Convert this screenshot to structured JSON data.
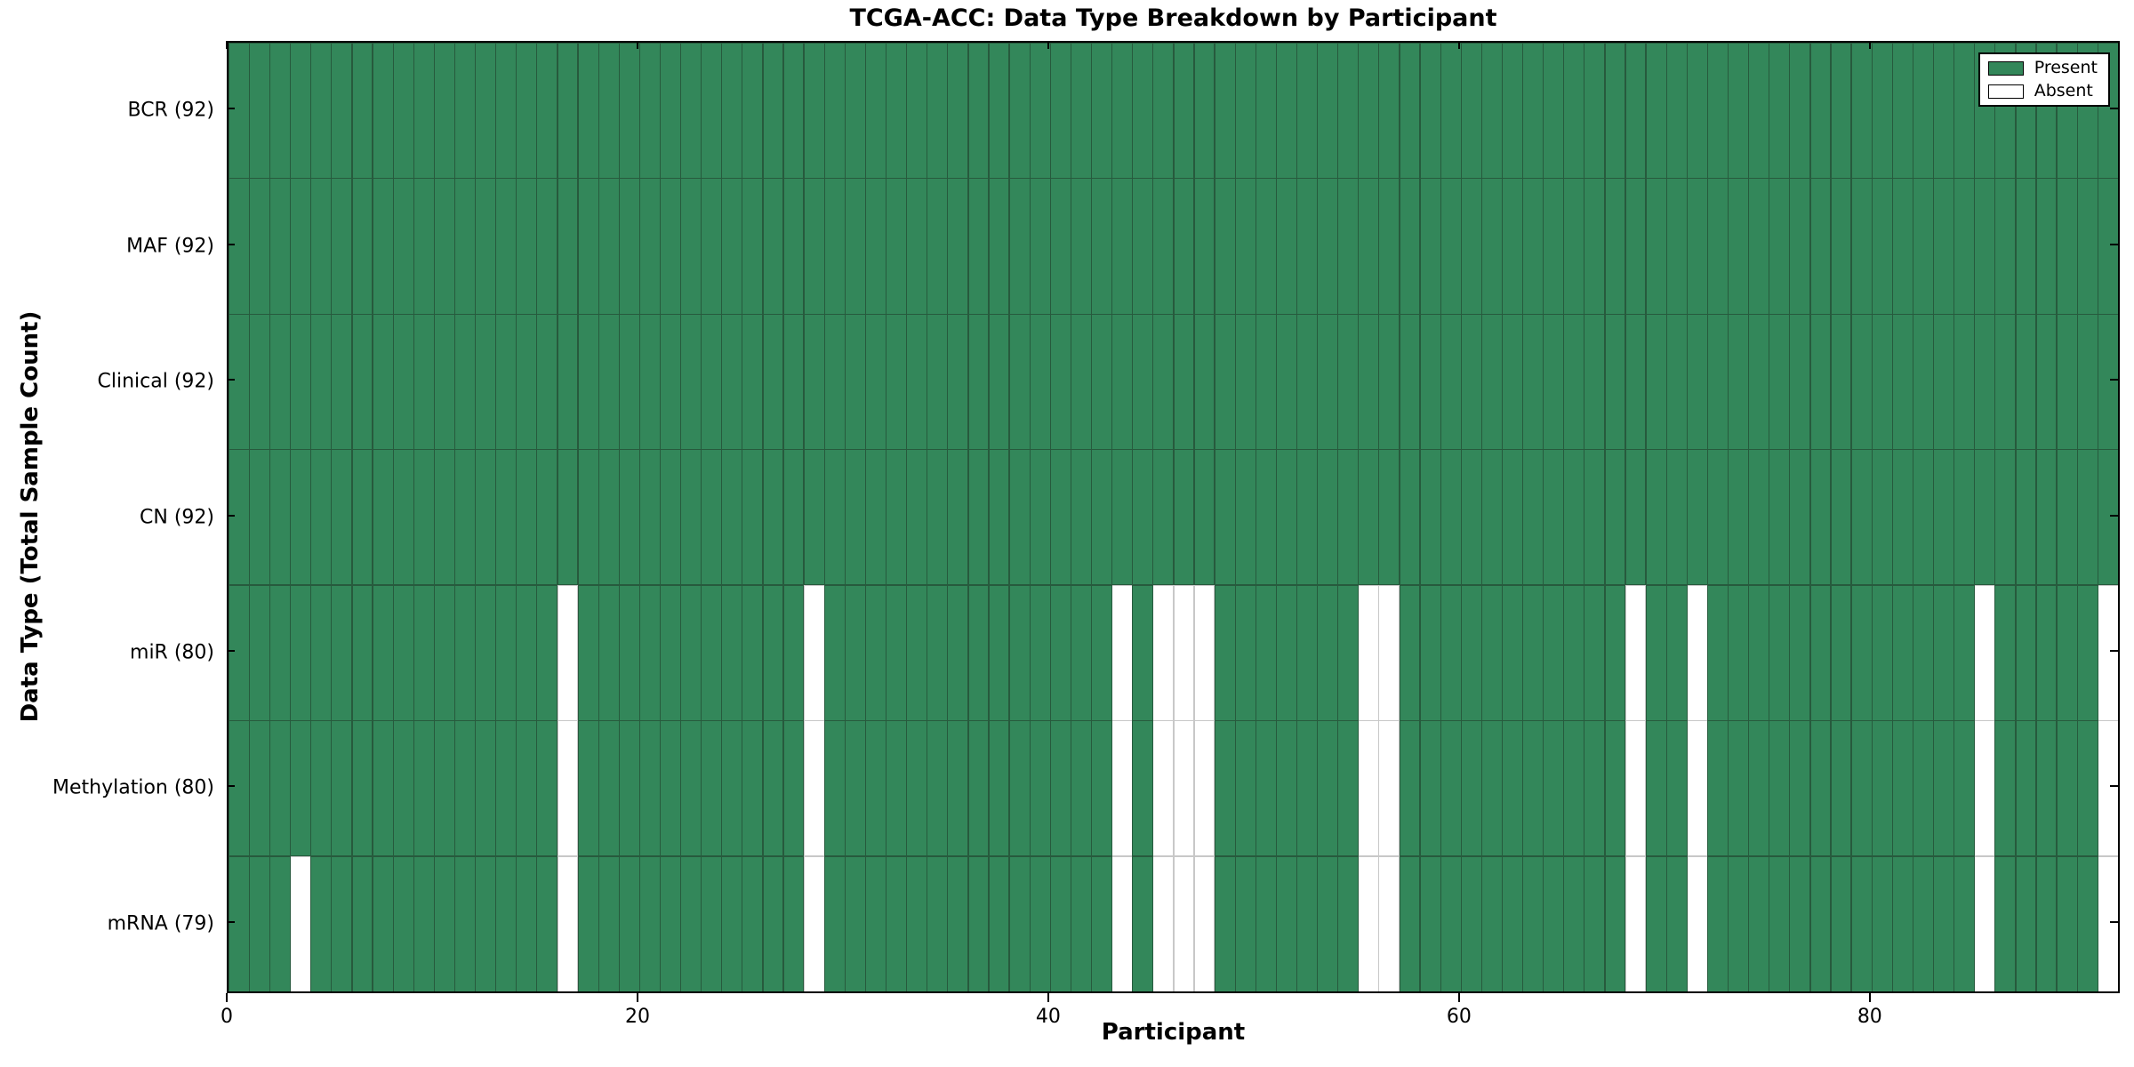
{
  "chart_data": {
    "type": "heatmap",
    "title": "TCGA-ACC: Data Type Breakdown by Participant",
    "xlabel": "Participant",
    "ylabel": "Data Type (Total Sample Count)",
    "x_ticks": [
      0,
      20,
      40,
      60,
      80
    ],
    "x_range": [
      0,
      92
    ],
    "n_participants": 92,
    "rows": [
      {
        "label": "BCR (92)",
        "data_type": "BCR",
        "total": 92,
        "absent_participants": []
      },
      {
        "label": "MAF (92)",
        "data_type": "MAF",
        "total": 92,
        "absent_participants": []
      },
      {
        "label": "Clinical (92)",
        "data_type": "Clinical",
        "total": 92,
        "absent_participants": []
      },
      {
        "label": "CN (92)",
        "data_type": "CN",
        "total": 92,
        "absent_participants": []
      },
      {
        "label": "miR (80)",
        "data_type": "miR",
        "total": 80,
        "absent_participants": [
          16,
          28,
          43,
          45,
          46,
          47,
          55,
          56,
          68,
          71,
          85,
          91
        ]
      },
      {
        "label": "Methylation (80)",
        "data_type": "Methylation",
        "total": 80,
        "absent_participants": [
          16,
          28,
          43,
          45,
          46,
          47,
          55,
          56,
          68,
          71,
          85,
          91
        ]
      },
      {
        "label": "mRNA (79)",
        "data_type": "mRNA",
        "total": 79,
        "absent_participants": [
          3,
          16,
          28,
          43,
          45,
          46,
          47,
          55,
          56,
          68,
          71,
          85,
          91
        ]
      }
    ],
    "legend": {
      "position": "upper right",
      "entries": [
        {
          "label": "Present",
          "color": "#33875a"
        },
        {
          "label": "Absent",
          "color": "#ffffff"
        }
      ]
    },
    "colors": {
      "present": "#33875a",
      "absent": "#ffffff",
      "present_edge": "#275a3d",
      "absent_edge": "#c8c8c8",
      "spine": "#000000",
      "background": "#ffffff"
    },
    "grid": false,
    "cell_edges": true
  }
}
